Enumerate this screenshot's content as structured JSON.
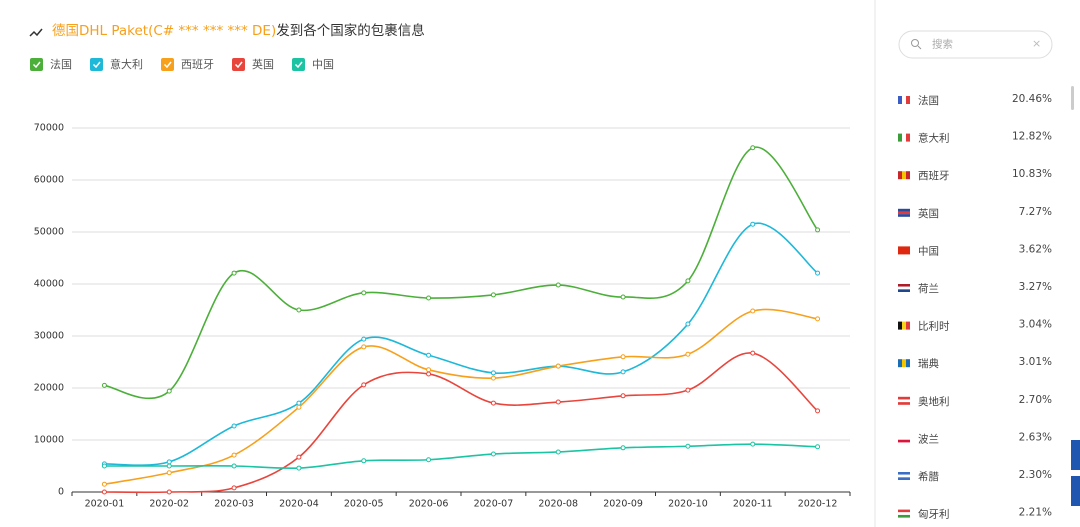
{
  "chart_data": {
    "type": "line",
    "title_highlight": "德国DHL Paket(C# *** *** *** DE)",
    "title": "发到各个国家的包裹信息",
    "categories": [
      "2020-01",
      "2020-02",
      "2020-03",
      "2020-04",
      "2020-05",
      "2020-06",
      "2020-07",
      "2020-08",
      "2020-09",
      "2020-10",
      "2020-11",
      "2020-12"
    ],
    "series": [
      {
        "name": "法国",
        "color": "#4caf3a",
        "values": [
          20500,
          19400,
          42100,
          35000,
          38300,
          37300,
          37900,
          39800,
          37500,
          40600,
          66200,
          50400
        ]
      },
      {
        "name": "意大利",
        "color": "#1eb8d8",
        "values": [
          5400,
          5800,
          12700,
          17100,
          29400,
          26300,
          22900,
          24200,
          23100,
          32300,
          51500,
          42100
        ]
      },
      {
        "name": "西班牙",
        "color": "#f7a01c",
        "values": [
          1500,
          3700,
          7100,
          16300,
          27900,
          23500,
          21900,
          24200,
          26000,
          26500,
          34800,
          33300
        ]
      },
      {
        "name": "英国",
        "color": "#e8453c",
        "values": [
          0,
          0,
          800,
          6700,
          20600,
          22700,
          17100,
          17300,
          18500,
          19600,
          26700,
          15600
        ]
      },
      {
        "name": "中国",
        "color": "#1cc4a4",
        "values": [
          5000,
          5000,
          5000,
          4600,
          6000,
          6200,
          7300,
          7700,
          8500,
          8800,
          9200,
          8700
        ]
      }
    ],
    "ylim": [
      0,
      70000
    ],
    "yticks": [
      0,
      10000,
      20000,
      30000,
      40000,
      50000,
      60000,
      70000
    ],
    "grid": true
  },
  "sidebar": {
    "search_placeholder": "搜索",
    "items": [
      {
        "name": "法国",
        "share": "20.46%"
      },
      {
        "name": "意大利",
        "share": "12.82%"
      },
      {
        "name": "西班牙",
        "share": "10.83%"
      },
      {
        "name": "英国",
        "share": "7.27%"
      },
      {
        "name": "中国",
        "share": "3.62%"
      },
      {
        "name": "荷兰",
        "share": "3.27%"
      },
      {
        "name": "比利时",
        "share": "3.04%"
      },
      {
        "name": "瑞典",
        "share": "3.01%"
      },
      {
        "name": "奥地利",
        "share": "2.70%"
      },
      {
        "name": "波兰",
        "share": "2.63%"
      },
      {
        "name": "希腊",
        "share": "2.30%"
      },
      {
        "name": "匈牙利",
        "share": "2.21%"
      }
    ]
  }
}
